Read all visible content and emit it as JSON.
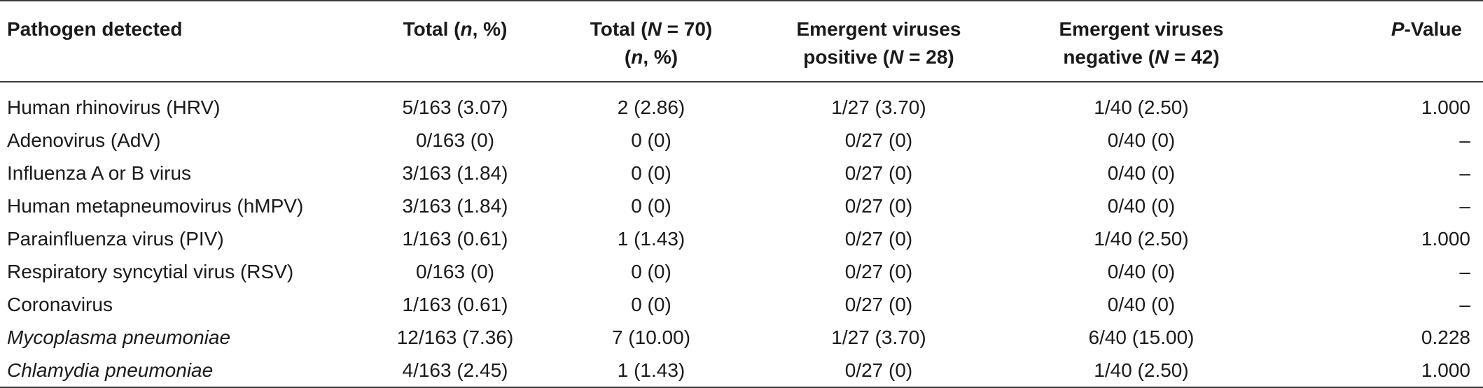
{
  "table": {
    "headers": [
      {
        "parts": [
          {
            "text": "Pathogen detected",
            "italic": false
          }
        ]
      },
      {
        "parts": [
          {
            "text": "Total (",
            "italic": false
          },
          {
            "text": "n",
            "italic": true
          },
          {
            "text": ", %)",
            "italic": false
          }
        ]
      },
      {
        "parts": [
          {
            "text": "Total (",
            "italic": false
          },
          {
            "text": "N",
            "italic": true
          },
          {
            "text": " = 70)",
            "italic": false
          },
          {
            "br": true
          },
          {
            "text": "(",
            "italic": false
          },
          {
            "text": "n",
            "italic": true
          },
          {
            "text": ", %)",
            "italic": false
          }
        ]
      },
      {
        "parts": [
          {
            "text": "Emergent viruses",
            "italic": false
          },
          {
            "br": true
          },
          {
            "text": "positive (",
            "italic": false
          },
          {
            "text": "N",
            "italic": true
          },
          {
            "text": " = 28)",
            "italic": false
          }
        ]
      },
      {
        "parts": [
          {
            "text": "Emergent viruses",
            "italic": false
          },
          {
            "br": true
          },
          {
            "text": "negative (",
            "italic": false
          },
          {
            "text": "N",
            "italic": true
          },
          {
            "text": " = 42)",
            "italic": false
          }
        ]
      },
      {
        "parts": [
          {
            "text": "P",
            "italic": true
          },
          {
            "text": "-Value",
            "italic": false
          }
        ]
      }
    ],
    "rows": [
      {
        "pathogen": "Human rhinovirus (HRV)",
        "italic": false,
        "total_n": "5/163 (3.07)",
        "total_70": "2 (2.86)",
        "ev_pos": "1/27 (3.70)",
        "ev_neg": "1/40 (2.50)",
        "p": "1.000"
      },
      {
        "pathogen": "Adenovirus (AdV)",
        "italic": false,
        "total_n": "0/163 (0)",
        "total_70": "0 (0)",
        "ev_pos": "0/27 (0)",
        "ev_neg": "0/40 (0)",
        "p": "–"
      },
      {
        "pathogen": "Influenza A or B virus",
        "italic": false,
        "total_n": "3/163 (1.84)",
        "total_70": "0 (0)",
        "ev_pos": "0/27 (0)",
        "ev_neg": "0/40 (0)",
        "p": "–"
      },
      {
        "pathogen": "Human metapneumovirus (hMPV)",
        "italic": false,
        "total_n": "3/163 (1.84)",
        "total_70": "0 (0)",
        "ev_pos": "0/27 (0)",
        "ev_neg": "0/40 (0)",
        "p": "–"
      },
      {
        "pathogen": "Parainfluenza virus (PIV)",
        "italic": false,
        "total_n": "1/163 (0.61)",
        "total_70": "1 (1.43)",
        "ev_pos": "0/27 (0)",
        "ev_neg": "1/40 (2.50)",
        "p": "1.000"
      },
      {
        "pathogen": "Respiratory syncytial virus (RSV)",
        "italic": false,
        "total_n": "0/163 (0)",
        "total_70": "0 (0)",
        "ev_pos": "0/27 (0)",
        "ev_neg": "0/40 (0)",
        "p": "–"
      },
      {
        "pathogen": "Coronavirus",
        "italic": false,
        "total_n": "1/163 (0.61)",
        "total_70": "0 (0)",
        "ev_pos": "0/27 (0)",
        "ev_neg": "0/40 (0)",
        "p": "–"
      },
      {
        "pathogen": "Mycoplasma pneumoniae",
        "italic": true,
        "total_n": "12/163 (7.36)",
        "total_70": "7 (10.00)",
        "ev_pos": "1/27 (3.70)",
        "ev_neg": "6/40 (15.00)",
        "p": "0.228"
      },
      {
        "pathogen": "Chlamydia pneumoniae",
        "italic": true,
        "total_n": "4/163 (2.45)",
        "total_70": "1 (1.43)",
        "ev_pos": "0/27 (0)",
        "ev_neg": "1/40 (2.50)",
        "p": "1.000"
      }
    ]
  }
}
